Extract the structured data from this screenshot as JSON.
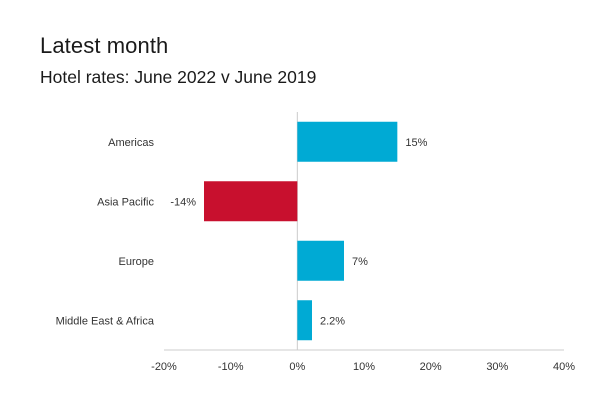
{
  "header": {
    "title": "Latest month",
    "subtitle": "Hotel rates: June 2022 v June 2019"
  },
  "colors": {
    "positive": "#00aad4",
    "negative": "#c8102e",
    "axis": "#cccccc"
  },
  "chart_data": {
    "type": "bar",
    "orientation": "horizontal",
    "title": "Latest month",
    "subtitle": "Hotel rates: June 2022 v June 2019",
    "categories": [
      "Americas",
      "Asia Pacific",
      "Europe",
      "Middle East & Africa"
    ],
    "values": [
      15,
      -14,
      7,
      2.2
    ],
    "data_labels": [
      "15%",
      "-14%",
      "7%",
      "2.2%"
    ],
    "xlim": [
      -20,
      40
    ],
    "xticks": [
      -20,
      -10,
      0,
      10,
      20,
      30,
      40
    ],
    "xtick_labels": [
      "-20%",
      "-10%",
      "0%",
      "10%",
      "20%",
      "30%",
      "40%"
    ],
    "xlabel": "",
    "ylabel": "",
    "grid": false,
    "legend": false
  }
}
